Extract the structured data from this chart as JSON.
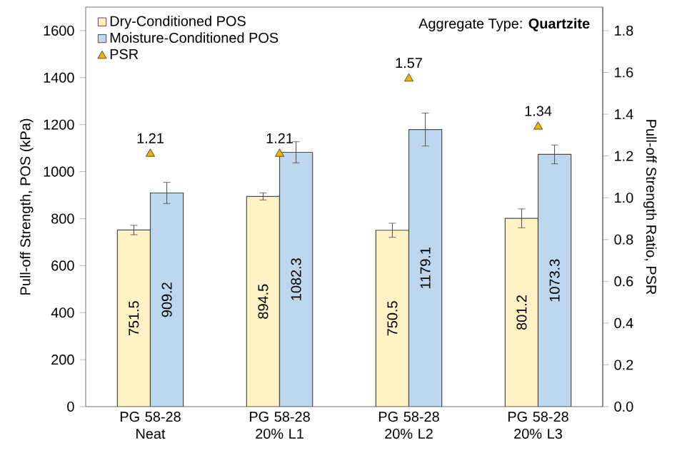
{
  "chart_data": {
    "type": "bar",
    "categories": [
      "PG 58-28 Neat",
      "PG 58-28 20% L1",
      "PG 58-28 20% L2",
      "PG 58-28 20% L3"
    ],
    "series": [
      {
        "name": "Dry-Conditioned POS",
        "color": "#fff2c4",
        "values": [
          751.5,
          894.5,
          750.5,
          801.2
        ],
        "errors": [
          20,
          15,
          30,
          40
        ]
      },
      {
        "name": "Moisture-Conditioned POS",
        "color": "#bdd7ee",
        "values": [
          909.2,
          1082.3,
          1179.1,
          1073.3
        ],
        "errors": [
          45,
          45,
          70,
          40
        ]
      },
      {
        "name": "PSR",
        "type": "scatter",
        "axis": "y2",
        "marker": "triangle",
        "color": "#f0b400",
        "values": [
          1.21,
          1.21,
          1.57,
          1.34
        ]
      }
    ],
    "ylabel": "Pull-off Strength, POS (kPa)",
    "y2label": "Pull-off Strength Ratio, PSR",
    "ylim": [
      0,
      1700
    ],
    "yticks": [
      0,
      200,
      400,
      600,
      800,
      1000,
      1200,
      1400,
      1600
    ],
    "y2lim": [
      0,
      1.9125
    ],
    "y2ticks": [
      {
        "value": 0,
        "label": "0.0"
      },
      0.2,
      0.4,
      0.6,
      0.8,
      {
        "value": 1,
        "label": "1.0"
      },
      1.2,
      1.4,
      1.6,
      1.8
    ],
    "annotations": [
      "Aggregate Type: **Quartzite**"
    ],
    "data_labels": true,
    "legend": "top left",
    "grid": false
  }
}
